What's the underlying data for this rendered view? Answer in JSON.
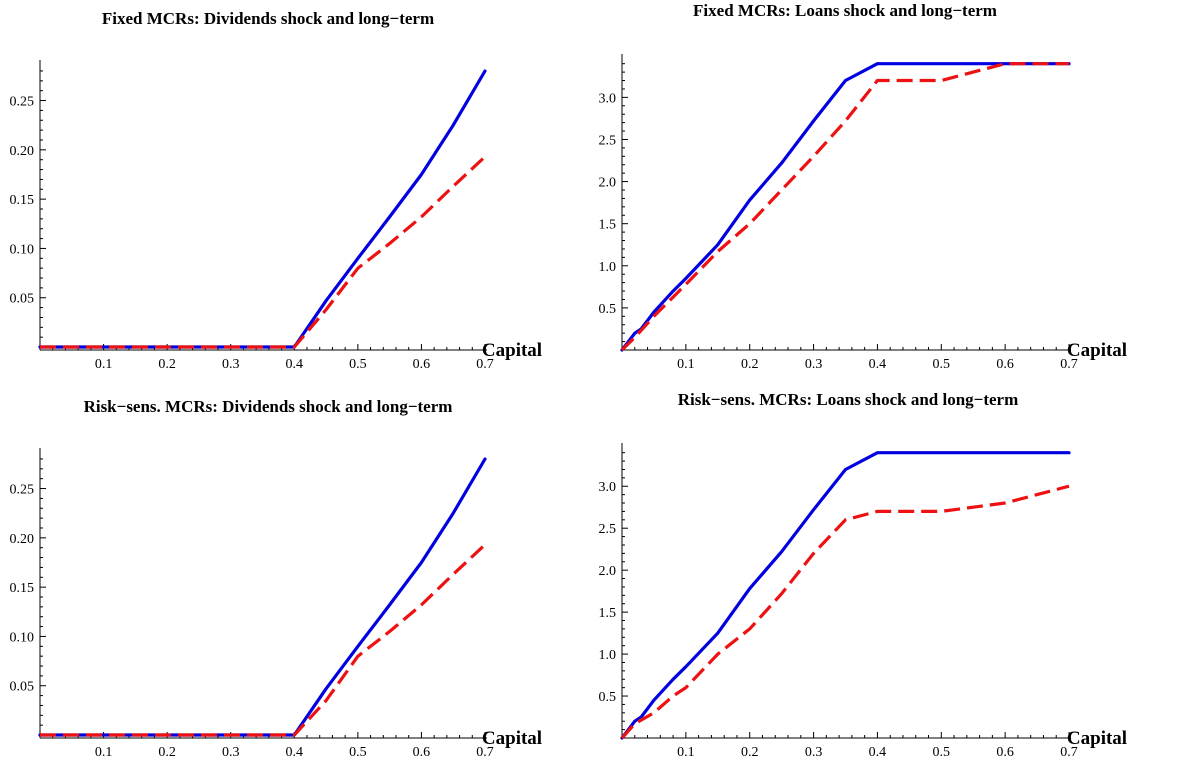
{
  "chart_data": [
    {
      "type": "line",
      "title": "Fixed MCRs: Dividends shock and long−term",
      "xlabel": "Capital",
      "ylabel": "",
      "xlim": [
        0,
        0.7
      ],
      "ylim": [
        -0.003,
        0.283
      ],
      "x_ticks": [
        0.1,
        0.2,
        0.3,
        0.4,
        0.5,
        0.6,
        0.7
      ],
      "x_tick_labels": [
        "0.1",
        "0.2",
        "0.3",
        "0.4",
        "0.5",
        "0.6",
        "0.7"
      ],
      "y_ticks": [
        0.05,
        0.1,
        0.15,
        0.2,
        0.25
      ],
      "y_tick_labels": [
        "0.05",
        "0.10",
        "0.15",
        "0.20",
        "0.25"
      ],
      "grid": false,
      "series": [
        {
          "color": "#0000e0",
          "dash": "solid",
          "x": [
            0,
            0.4,
            0.45,
            0.5,
            0.55,
            0.6,
            0.65,
            0.7
          ],
          "y": [
            0,
            0,
            0.047,
            0.09,
            0.132,
            0.175,
            0.225,
            0.28
          ]
        },
        {
          "color": "#ee1111",
          "dash": "dashed",
          "x": [
            0,
            0.4,
            0.45,
            0.5,
            0.55,
            0.6,
            0.65,
            0.7
          ],
          "y": [
            0,
            0,
            0.038,
            0.08,
            0.105,
            0.132,
            0.163,
            0.193
          ]
        }
      ]
    },
    {
      "type": "line",
      "title": "Fixed MCRs: Loans shock and long−term",
      "xlabel": "Capital",
      "ylabel": "",
      "xlim": [
        0,
        0.7
      ],
      "ylim": [
        0,
        3.42
      ],
      "x_ticks": [
        0.1,
        0.2,
        0.3,
        0.4,
        0.5,
        0.6,
        0.7
      ],
      "x_tick_labels": [
        "0.1",
        "0.2",
        "0.3",
        "0.4",
        "0.5",
        "0.6",
        "0.7"
      ],
      "y_ticks": [
        0.5,
        1.0,
        1.5,
        2.0,
        2.5,
        3.0
      ],
      "y_tick_labels": [
        "0.5",
        "1.0",
        "1.5",
        "2.0",
        "2.5",
        "3.0"
      ],
      "grid": false,
      "series": [
        {
          "color": "#0000e0",
          "dash": "solid",
          "x": [
            0,
            0.02,
            0.03,
            0.05,
            0.08,
            0.1,
            0.15,
            0.2,
            0.25,
            0.3,
            0.35,
            0.4,
            0.45,
            0.5,
            0.55,
            0.6,
            0.65,
            0.7
          ],
          "y": [
            0,
            0.2,
            0.25,
            0.45,
            0.7,
            0.85,
            1.25,
            1.78,
            2.22,
            2.72,
            3.2,
            3.4,
            3.4,
            3.4,
            3.4,
            3.4,
            3.4,
            3.4
          ]
        },
        {
          "color": "#ee1111",
          "dash": "dashed",
          "x": [
            0,
            0.02,
            0.05,
            0.1,
            0.15,
            0.2,
            0.25,
            0.3,
            0.35,
            0.4,
            0.45,
            0.5,
            0.55,
            0.6,
            0.65,
            0.7
          ],
          "y": [
            0,
            0.15,
            0.4,
            0.78,
            1.17,
            1.5,
            1.9,
            2.3,
            2.72,
            3.2,
            3.2,
            3.2,
            3.3,
            3.4,
            3.4,
            3.4
          ]
        }
      ]
    },
    {
      "type": "line",
      "title": "Risk−sens. MCRs: Dividends shock and long−term",
      "xlabel": "Capital",
      "ylabel": "",
      "xlim": [
        0,
        0.7
      ],
      "ylim": [
        -0.003,
        0.283
      ],
      "x_ticks": [
        0.1,
        0.2,
        0.3,
        0.4,
        0.5,
        0.6,
        0.7
      ],
      "x_tick_labels": [
        "0.1",
        "0.2",
        "0.3",
        "0.4",
        "0.5",
        "0.6",
        "0.7"
      ],
      "y_ticks": [
        0.05,
        0.1,
        0.15,
        0.2,
        0.25
      ],
      "y_tick_labels": [
        "0.05",
        "0.10",
        "0.15",
        "0.20",
        "0.25"
      ],
      "grid": false,
      "series": [
        {
          "color": "#0000e0",
          "dash": "solid",
          "x": [
            0,
            0.4,
            0.45,
            0.5,
            0.55,
            0.6,
            0.65,
            0.7
          ],
          "y": [
            0,
            0,
            0.047,
            0.09,
            0.132,
            0.175,
            0.225,
            0.28
          ]
        },
        {
          "color": "#ee1111",
          "dash": "dashed",
          "x": [
            0,
            0.4,
            0.45,
            0.5,
            0.55,
            0.6,
            0.65,
            0.7
          ],
          "y": [
            0,
            0,
            0.035,
            0.08,
            0.105,
            0.132,
            0.163,
            0.193
          ]
        }
      ]
    },
    {
      "type": "line",
      "title": "Risk−sens. MCRs: Loans shock and long−term",
      "xlabel": "Capital",
      "ylabel": "",
      "xlim": [
        0,
        0.7
      ],
      "ylim": [
        0,
        3.42
      ],
      "x_ticks": [
        0.1,
        0.2,
        0.3,
        0.4,
        0.5,
        0.6,
        0.7
      ],
      "x_tick_labels": [
        "0.1",
        "0.2",
        "0.3",
        "0.4",
        "0.5",
        "0.6",
        "0.7"
      ],
      "y_ticks": [
        0.5,
        1.0,
        1.5,
        2.0,
        2.5,
        3.0
      ],
      "y_tick_labels": [
        "0.5",
        "1.0",
        "1.5",
        "2.0",
        "2.5",
        "3.0"
      ],
      "grid": false,
      "series": [
        {
          "color": "#0000e0",
          "dash": "solid",
          "x": [
            0,
            0.02,
            0.03,
            0.05,
            0.08,
            0.1,
            0.15,
            0.2,
            0.25,
            0.3,
            0.35,
            0.4,
            0.45,
            0.5,
            0.55,
            0.6,
            0.65,
            0.7
          ],
          "y": [
            0,
            0.2,
            0.25,
            0.45,
            0.7,
            0.85,
            1.25,
            1.78,
            2.22,
            2.72,
            3.2,
            3.4,
            3.4,
            3.4,
            3.4,
            3.4,
            3.4,
            3.4
          ]
        },
        {
          "color": "#ee1111",
          "dash": "dashed",
          "x": [
            0,
            0.02,
            0.05,
            0.08,
            0.1,
            0.15,
            0.2,
            0.25,
            0.3,
            0.35,
            0.4,
            0.45,
            0.5,
            0.55,
            0.6,
            0.65,
            0.7
          ],
          "y": [
            0,
            0.17,
            0.3,
            0.5,
            0.6,
            1.0,
            1.3,
            1.72,
            2.2,
            2.6,
            2.7,
            2.7,
            2.7,
            2.75,
            2.8,
            2.9,
            3.0
          ]
        }
      ]
    }
  ]
}
